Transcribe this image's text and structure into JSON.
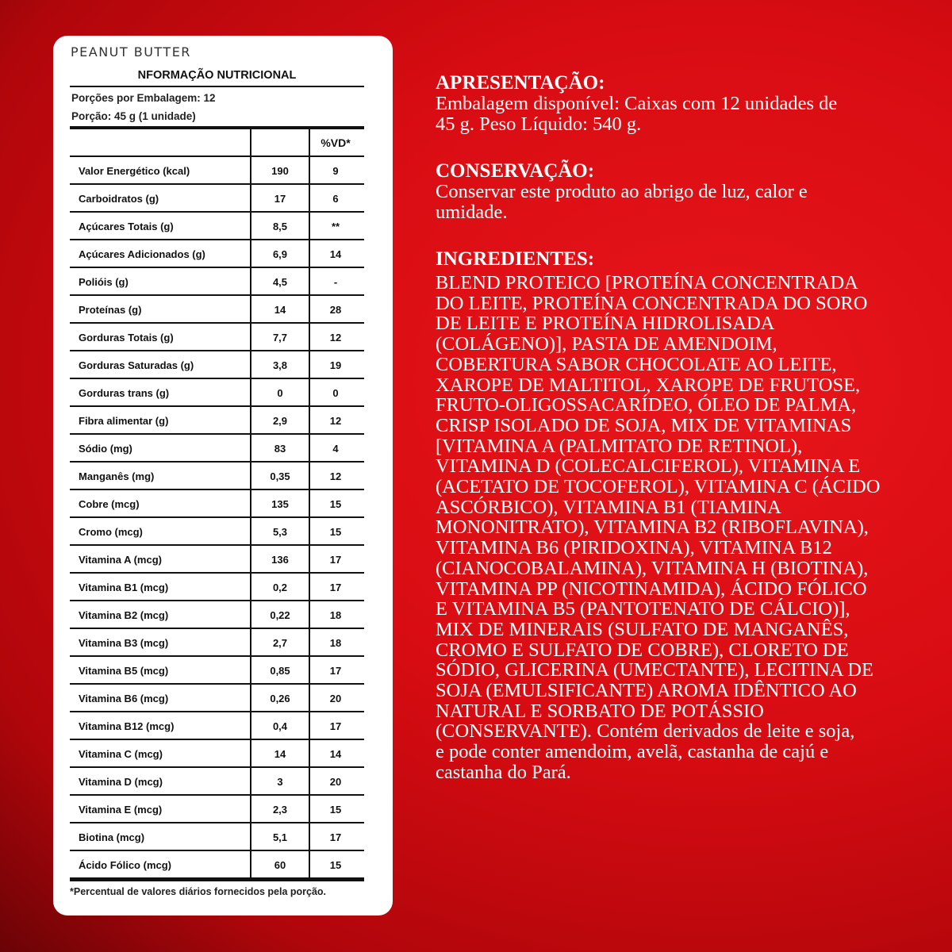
{
  "panel": {
    "brand": "PEANUT BUTTER",
    "title": "NFORMAÇÃO NUTRICIONAL",
    "servings_per_package": "Porções por Embalagem: 12",
    "serving_size": "Porção: 45 g (1 unidade)",
    "columns": [
      "",
      "",
      "%VD*"
    ],
    "rows": [
      {
        "label": "Valor Energético (kcal)",
        "value": "190",
        "vd": "9"
      },
      {
        "label": "Carboidratos (g)",
        "value": "17",
        "vd": "6"
      },
      {
        "label": "Açúcares Totais (g)",
        "value": "8,5",
        "vd": "**"
      },
      {
        "label": "Açúcares Adicionados (g)",
        "value": "6,9",
        "vd": "14"
      },
      {
        "label": "Polióis (g)",
        "value": "4,5",
        "vd": "-"
      },
      {
        "label": "Proteínas (g)",
        "value": "14",
        "vd": "28"
      },
      {
        "label": "Gorduras Totais (g)",
        "value": "7,7",
        "vd": "12"
      },
      {
        "label": "Gorduras Saturadas (g)",
        "value": "3,8",
        "vd": "19"
      },
      {
        "label": "Gorduras trans (g)",
        "value": "0",
        "vd": "0"
      },
      {
        "label": "Fibra alimentar (g)",
        "value": "2,9",
        "vd": "12"
      },
      {
        "label": "Sódio (mg)",
        "value": "83",
        "vd": "4"
      },
      {
        "label": "Manganês (mg)",
        "value": "0,35",
        "vd": "12"
      },
      {
        "label": "Cobre (mcg)",
        "value": "135",
        "vd": "15"
      },
      {
        "label": "Cromo (mcg)",
        "value": "5,3",
        "vd": "15"
      },
      {
        "label": "Vitamina A (mcg)",
        "value": "136",
        "vd": "17"
      },
      {
        "label": "Vitamina B1 (mcg)",
        "value": "0,2",
        "vd": "17"
      },
      {
        "label": "Vitamina B2 (mcg)",
        "value": "0,22",
        "vd": "18"
      },
      {
        "label": "Vitamina B3 (mcg)",
        "value": "2,7",
        "vd": "18"
      },
      {
        "label": "Vitamina B5 (mcg)",
        "value": "0,85",
        "vd": "17"
      },
      {
        "label": "Vitamina B6 (mcg)",
        "value": "0,26",
        "vd": "20"
      },
      {
        "label": "Vitamina B12 (mcg)",
        "value": "0,4",
        "vd": "17"
      },
      {
        "label": "Vitamina C (mcg)",
        "value": "14",
        "vd": "14"
      },
      {
        "label": "Vitamina D (mcg)",
        "value": "3",
        "vd": "20"
      },
      {
        "label": "Vitamina E (mcg)",
        "value": "2,3",
        "vd": "15"
      },
      {
        "label": "Biotina (mcg)",
        "value": "5,1",
        "vd": "17"
      },
      {
        "label": "Ácido Fólico (mcg)",
        "value": "60",
        "vd": "15"
      }
    ],
    "footnote": "*Percentual de valores diários fornecidos pela porção."
  },
  "sections": [
    {
      "heading": "APRESENTAÇÃO:",
      "lines": [
        "Embalagem disponível: Caixas com 12 unidades de",
        "45 g. Peso Líquido: 540 g."
      ]
    },
    {
      "heading": "CONSERVAÇÃO:",
      "lines": [
        "Conservar este produto ao abrigo de luz, calor e",
        "umidade."
      ]
    },
    {
      "heading": "INGREDIENTES:",
      "lines": [
        "BLEND PROTEICO [PROTEÍNA CONCENTRADA",
        "DO LEITE, PROTEÍNA CONCENTRADA DO SORO",
        "DE LEITE E PROTEÍNA HIDROLISADA",
        "(COLÁGENO)], PASTA DE AMENDOIM,",
        "COBERTURA SABOR CHOCOLATE AO LEITE,",
        "XAROPE DE MALTITOL, XAROPE DE FRUTOSE,",
        "FRUTO-OLIGOSSACARÍDEO, ÓLEO DE PALMA,",
        "CRISP ISOLADO DE SOJA, MIX DE VITAMINAS",
        "[VITAMINA A (PALMITATO DE RETINOL),",
        "VITAMINA D (COLECALCIFEROL), VITAMINA E",
        "(ACETATO DE TOCOFEROL), VITAMINA C (ÁCIDO",
        "ASCÓRBICO), VITAMINA B1 (TIAMINA",
        "MONONITRATO), VITAMINA B2 (RIBOFLAVINA),",
        "VITAMINA B6 (PIRIDOXINA), VITAMINA B12",
        "(CIANOCOBALAMINA), VITAMINA H (BIOTINA),",
        "VITAMINA PP (NICOTINAMIDA), ÁCIDO FÓLICO",
        "E VITAMINA B5 (PANTOTENATO DE CÁLCIO)],",
        "MIX DE MINERAIS (SULFATO DE MANGANÊS,",
        "CROMO E SULFATO DE COBRE), CLORETO DE",
        "SÓDIO, GLICERINA (UMECTANTE), LECITINA DE",
        "SOJA (EMULSIFICANTE) AROMA IDÊNTICO AO",
        "NATURAL E SORBATO DE POTÁSSIO",
        "(CONSERVANTE). Contém derivados de leite e soja,",
        "e pode conter amendoim, avelã, castanha de cajú e",
        "castanha do Pará."
      ]
    }
  ],
  "colors": {
    "background": "#d70c12",
    "card": "#ffffff",
    "text_on_red": "#ffffff"
  }
}
